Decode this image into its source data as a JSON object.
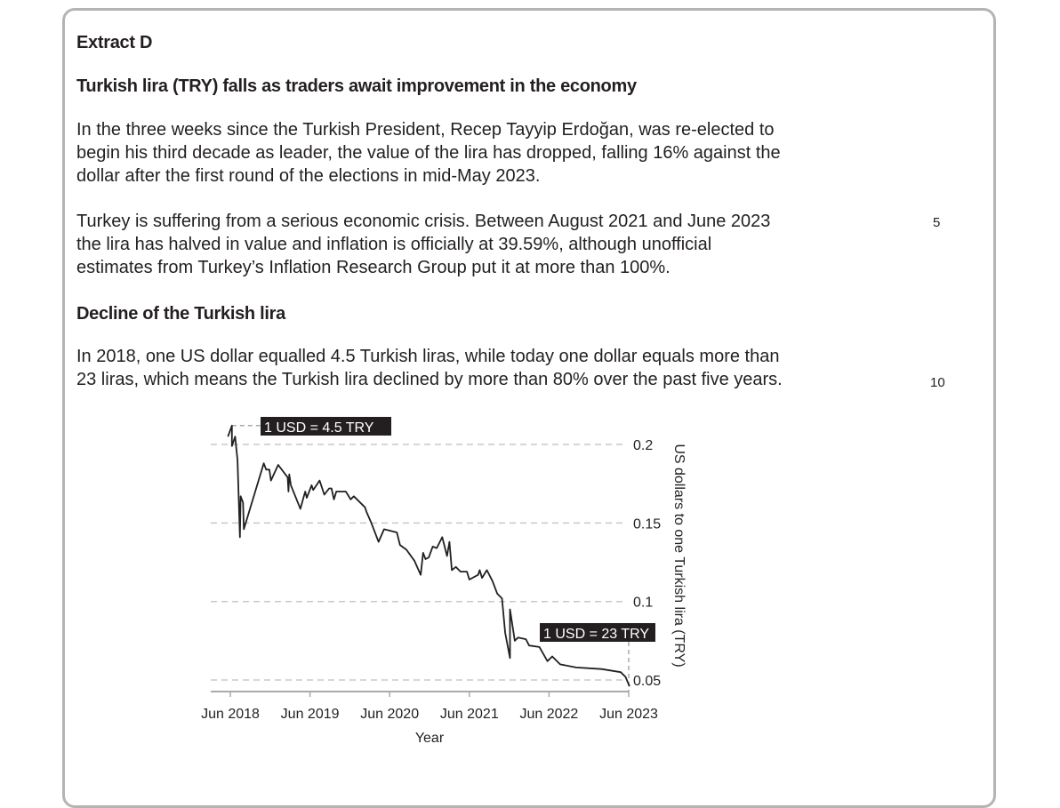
{
  "extract_label": "Extract D",
  "headline": "Turkish lira (TRY) falls as traders await improvement in the economy",
  "para1": [
    "In the three weeks since the Turkish President, Recep Tayyip Erdoğan, was re-elected to",
    "begin his third decade as leader, the value of the lira has dropped, falling 16% against the",
    "dollar after the first round of the elections in mid-May 2023."
  ],
  "para2": [
    "Turkey is suffering from a serious economic crisis. Between August 2021 and June 2023",
    "the lira has halved in value and inflation is officially at 39.59%, although unofficial",
    "estimates from Turkey’s Inflation Research Group put it at more than 100%."
  ],
  "subheading": "Decline of the Turkish lira",
  "para3": [
    "In 2018, one US dollar equalled 4.5 Turkish liras, while today one dollar equals more than",
    "23 liras, which means the Turkish lira declined by more than 80% over the past five years."
  ],
  "line_numbers": [
    "5",
    "10"
  ],
  "chart_data": {
    "type": "line",
    "title": "",
    "xlabel": "Year",
    "ylabel": "US dollars to one Turkish lira (TRY)",
    "x_ticks": [
      "Jun 2018",
      "Jun 2019",
      "Jun 2020",
      "Jun 2021",
      "Jun 2022",
      "Jun 2023"
    ],
    "x_tick_values": [
      2018.42,
      2019.42,
      2020.42,
      2021.42,
      2022.42,
      2023.42
    ],
    "y_ticks": [
      "0.05",
      "0.1",
      "0.15",
      "0.2"
    ],
    "y_tick_values": [
      0.05,
      0.1,
      0.15,
      0.2
    ],
    "ylim": [
      0.045,
      0.215
    ],
    "xlim": [
      2018.2,
      2023.42
    ],
    "grid": "horizontal dashed",
    "annotations": [
      {
        "text": "1 USD = 4.5 TRY",
        "x": 2018.44,
        "y": 0.212
      },
      {
        "text": "1 USD = 23 TRY",
        "x": 2023.42,
        "y": 0.046
      }
    ],
    "series": [
      {
        "name": "USD per TRY",
        "points": [
          [
            2018.39,
            0.205
          ],
          [
            2018.44,
            0.212
          ],
          [
            2018.44,
            0.199
          ],
          [
            2018.48,
            0.205
          ],
          [
            2018.51,
            0.19
          ],
          [
            2018.54,
            0.141
          ],
          [
            2018.55,
            0.167
          ],
          [
            2018.58,
            0.163
          ],
          [
            2018.59,
            0.146
          ],
          [
            2018.84,
            0.188
          ],
          [
            2018.87,
            0.184
          ],
          [
            2018.91,
            0.184
          ],
          [
            2018.93,
            0.177
          ],
          [
            2019.02,
            0.187
          ],
          [
            2019.14,
            0.179
          ],
          [
            2019.15,
            0.17
          ],
          [
            2019.16,
            0.181
          ],
          [
            2019.18,
            0.174
          ],
          [
            2019.3,
            0.159
          ],
          [
            2019.36,
            0.17
          ],
          [
            2019.38,
            0.166
          ],
          [
            2019.44,
            0.174
          ],
          [
            2019.46,
            0.171
          ],
          [
            2019.54,
            0.177
          ],
          [
            2019.6,
            0.168
          ],
          [
            2019.66,
            0.172
          ],
          [
            2019.69,
            0.172
          ],
          [
            2019.72,
            0.165
          ],
          [
            2019.75,
            0.17
          ],
          [
            2019.87,
            0.17
          ],
          [
            2019.93,
            0.165
          ],
          [
            2019.97,
            0.167
          ],
          [
            2020.11,
            0.16
          ],
          [
            2020.13,
            0.157
          ],
          [
            2020.19,
            0.15
          ],
          [
            2020.28,
            0.138
          ],
          [
            2020.35,
            0.146
          ],
          [
            2020.51,
            0.144
          ],
          [
            2020.55,
            0.136
          ],
          [
            2020.63,
            0.133
          ],
          [
            2020.73,
            0.126
          ],
          [
            2020.81,
            0.117
          ],
          [
            2020.84,
            0.131
          ],
          [
            2020.87,
            0.127
          ],
          [
            2020.91,
            0.128
          ],
          [
            2020.96,
            0.135
          ],
          [
            2021.01,
            0.134
          ],
          [
            2021.08,
            0.141
          ],
          [
            2021.14,
            0.129
          ],
          [
            2021.17,
            0.138
          ],
          [
            2021.2,
            0.12
          ],
          [
            2021.25,
            0.122
          ],
          [
            2021.31,
            0.119
          ],
          [
            2021.39,
            0.119
          ],
          [
            2021.42,
            0.114
          ],
          [
            2021.53,
            0.117
          ],
          [
            2021.55,
            0.12
          ],
          [
            2021.58,
            0.115
          ],
          [
            2021.64,
            0.12
          ],
          [
            2021.71,
            0.113
          ],
          [
            2021.77,
            0.105
          ],
          [
            2021.83,
            0.102
          ],
          [
            2021.87,
            0.08
          ],
          [
            2021.93,
            0.064
          ],
          [
            2021.93,
            0.095
          ],
          [
            2021.99,
            0.075
          ],
          [
            2022.03,
            0.077
          ],
          [
            2022.13,
            0.076
          ],
          [
            2022.17,
            0.072
          ],
          [
            2022.3,
            0.071
          ],
          [
            2022.4,
            0.062
          ],
          [
            2022.46,
            0.065
          ],
          [
            2022.56,
            0.06
          ],
          [
            2022.76,
            0.058
          ],
          [
            2023.08,
            0.057
          ],
          [
            2023.32,
            0.055
          ],
          [
            2023.38,
            0.052
          ],
          [
            2023.43,
            0.046
          ]
        ]
      }
    ]
  }
}
